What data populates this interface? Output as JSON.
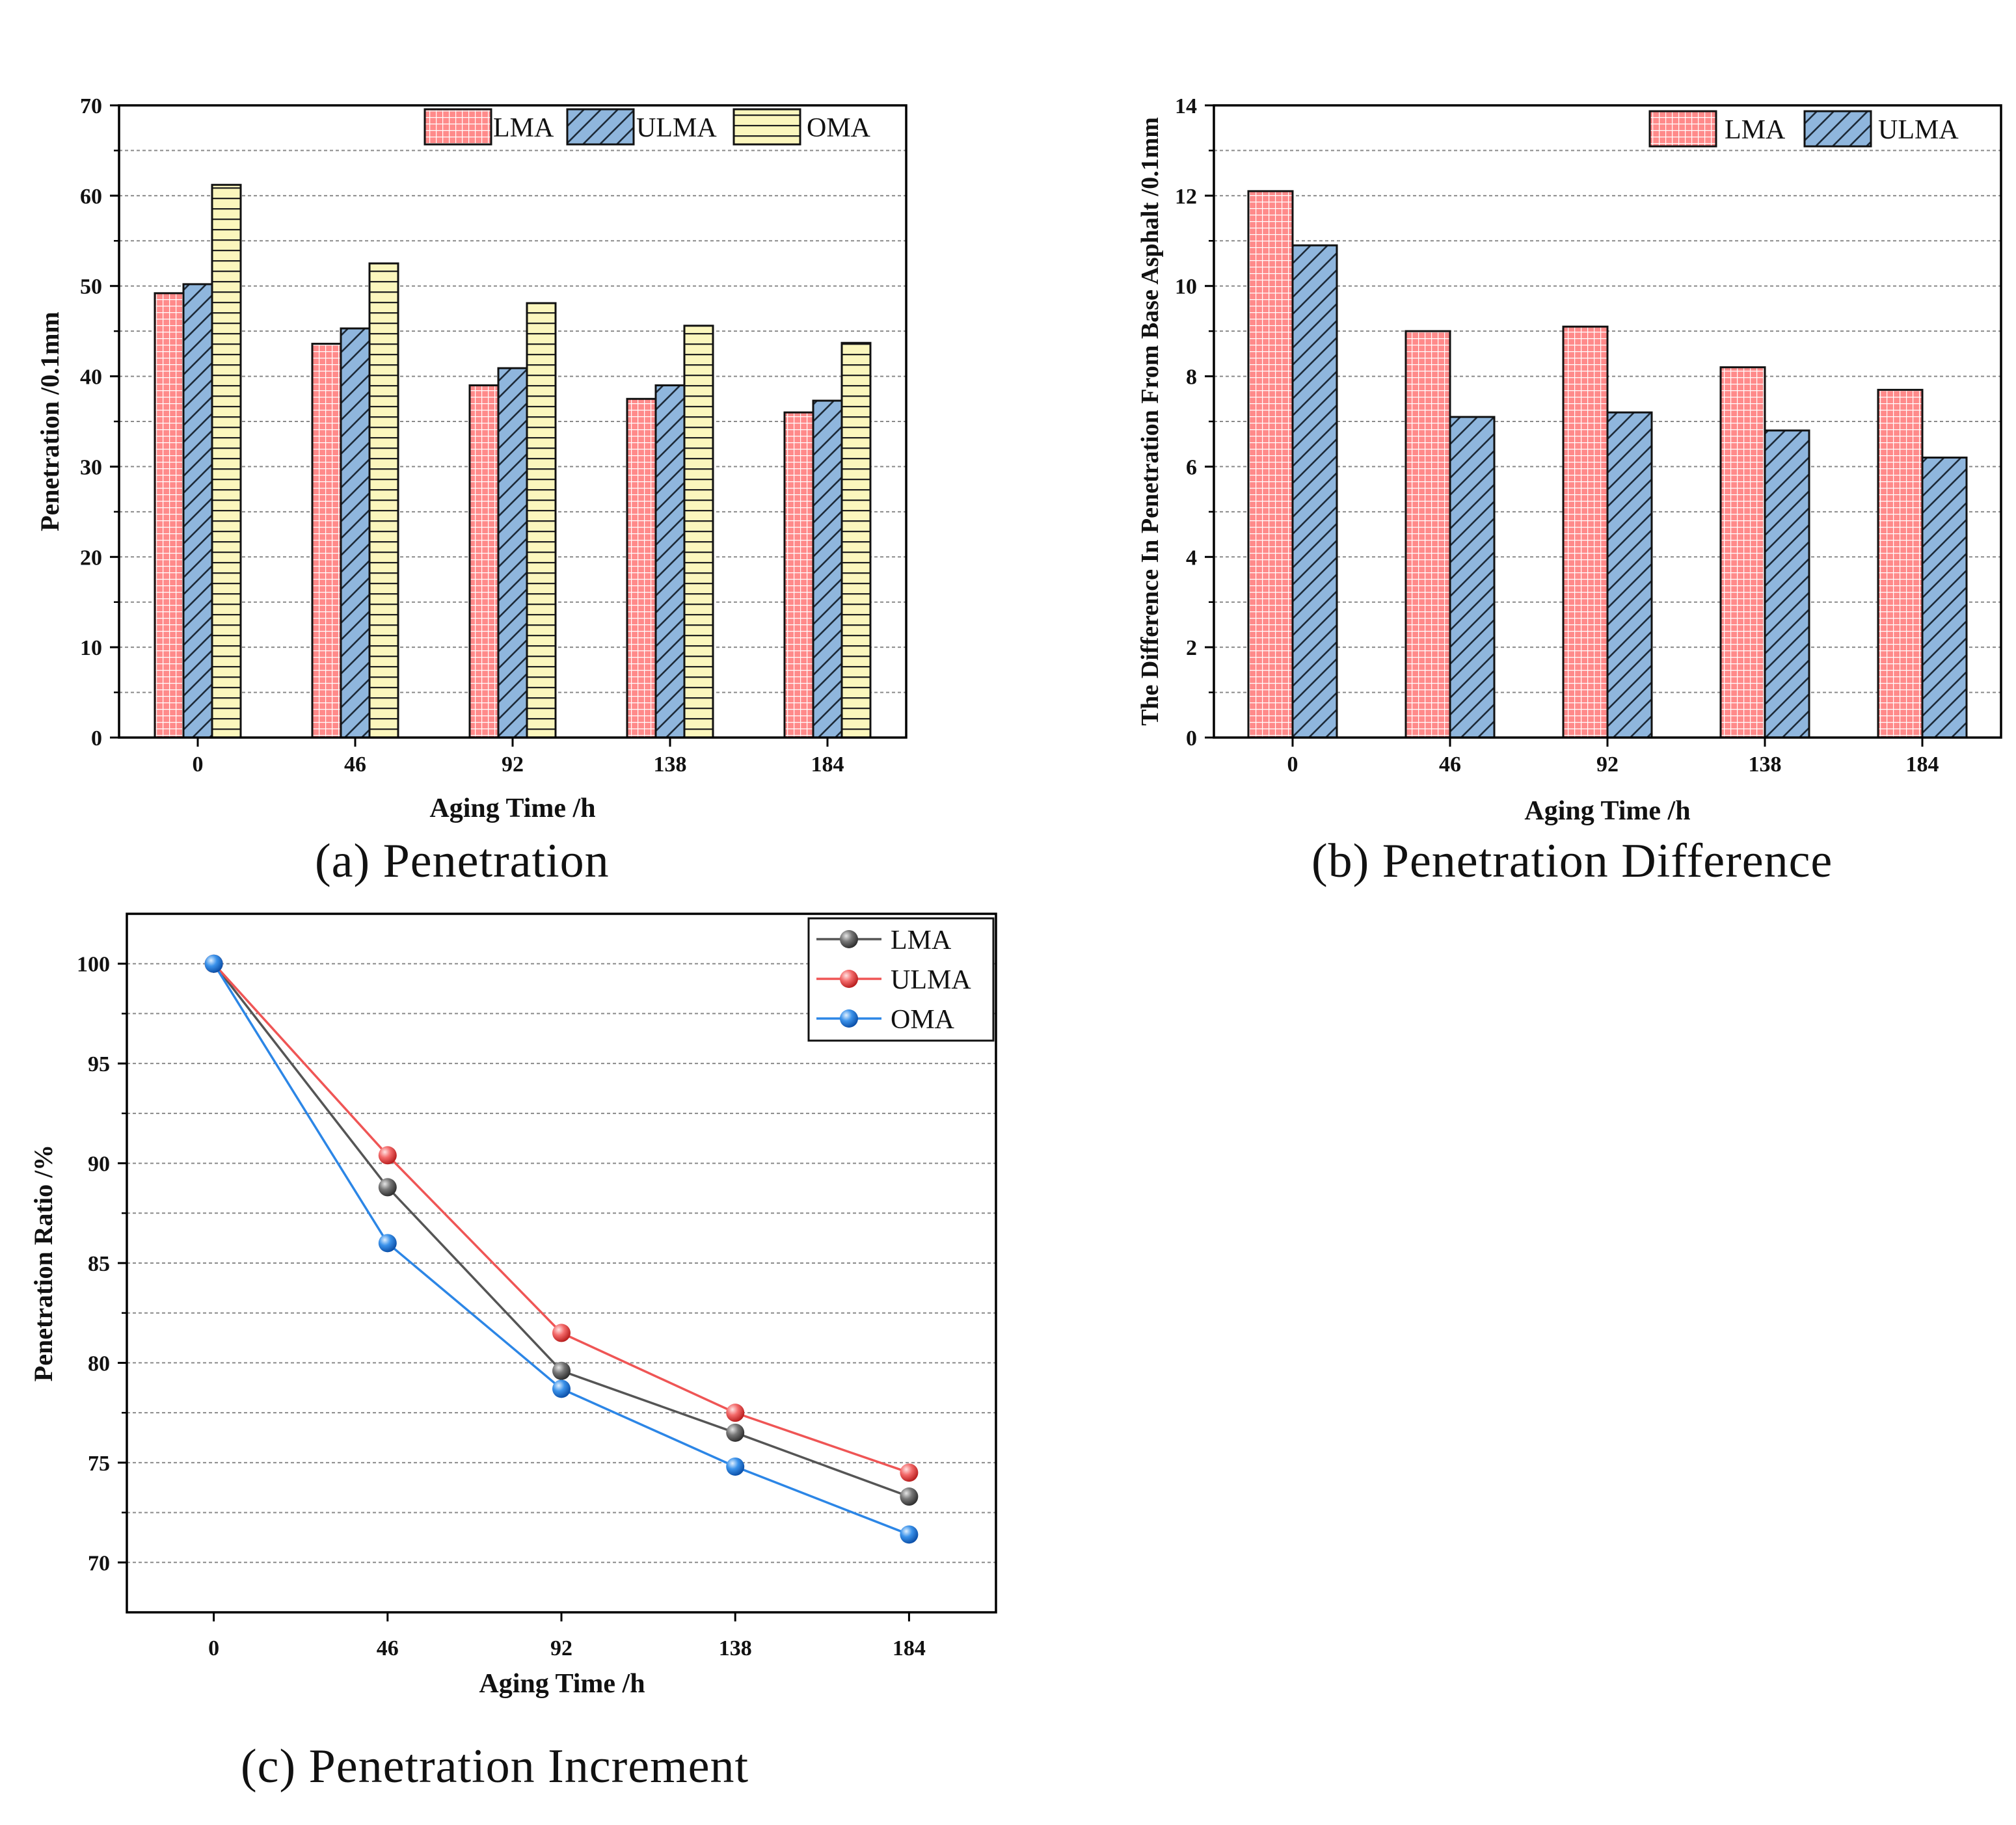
{
  "colors": {
    "lma_fill": "#ff8a8a",
    "ulma_fill": "#8fb6dd",
    "oma_fill": "#fbf6bd",
    "line_lma": "#555555",
    "line_ulma": "#ef5555",
    "line_oma": "#2c86e6",
    "grid": "#8a8a8a",
    "axis": "#000000"
  },
  "captions": {
    "a": "(a)  Penetration",
    "b": "(b)  Penetration Difference",
    "c": "(c)  Penetration Increment"
  },
  "chart_data": [
    {
      "id": "a",
      "type": "bar",
      "categories": [
        "0",
        "46",
        "92",
        "138",
        "184"
      ],
      "series": [
        {
          "name": "LMA",
          "pattern": "grid",
          "values": [
            49.2,
            43.6,
            39.0,
            37.5,
            36.0
          ]
        },
        {
          "name": "ULMA",
          "pattern": "diagonal",
          "values": [
            50.2,
            45.3,
            40.9,
            39.0,
            37.3
          ]
        },
        {
          "name": "OMA",
          "pattern": "horizontal",
          "values": [
            61.2,
            52.5,
            48.1,
            45.6,
            43.7
          ]
        }
      ],
      "title": "",
      "xlabel": "Aging Time /h",
      "ylabel": "Penetration /0.1mm",
      "ylim": [
        0,
        70
      ],
      "yticks": [
        "0",
        "10",
        "20",
        "30",
        "40",
        "50",
        "60",
        "70"
      ],
      "grid": true,
      "legend": "top-right"
    },
    {
      "id": "b",
      "type": "bar",
      "categories": [
        "0",
        "46",
        "92",
        "138",
        "184"
      ],
      "series": [
        {
          "name": "LMA",
          "pattern": "grid",
          "values": [
            12.1,
            9.0,
            9.1,
            8.2,
            7.7
          ]
        },
        {
          "name": "ULMA",
          "pattern": "diagonal",
          "values": [
            10.9,
            7.1,
            7.2,
            6.8,
            6.2
          ]
        }
      ],
      "title": "",
      "xlabel": "Aging Time /h",
      "ylabel": "The Difference In Penetration From Base Asphalt /0.1mm",
      "ylim": [
        0,
        14
      ],
      "yticks": [
        "0",
        "2",
        "4",
        "6",
        "8",
        "10",
        "12",
        "14"
      ],
      "grid": true,
      "legend": "top-right"
    },
    {
      "id": "c",
      "type": "line",
      "categories": [
        "0",
        "46",
        "92",
        "138",
        "184"
      ],
      "series": [
        {
          "name": "LMA",
          "values": [
            100,
            88.8,
            79.6,
            76.5,
            73.3
          ]
        },
        {
          "name": "ULMA",
          "values": [
            100,
            90.4,
            81.5,
            77.5,
            74.5
          ]
        },
        {
          "name": "OMA",
          "values": [
            100,
            86.0,
            78.7,
            74.8,
            71.4
          ]
        }
      ],
      "title": "",
      "xlabel": "Aging Time /h",
      "ylabel": "Penetration Ratio /%",
      "ylim": [
        67.5,
        102.5
      ],
      "yticks": [
        "70",
        "75",
        "80",
        "85",
        "90",
        "95",
        "100"
      ],
      "grid": true,
      "legend": "top-right"
    }
  ]
}
